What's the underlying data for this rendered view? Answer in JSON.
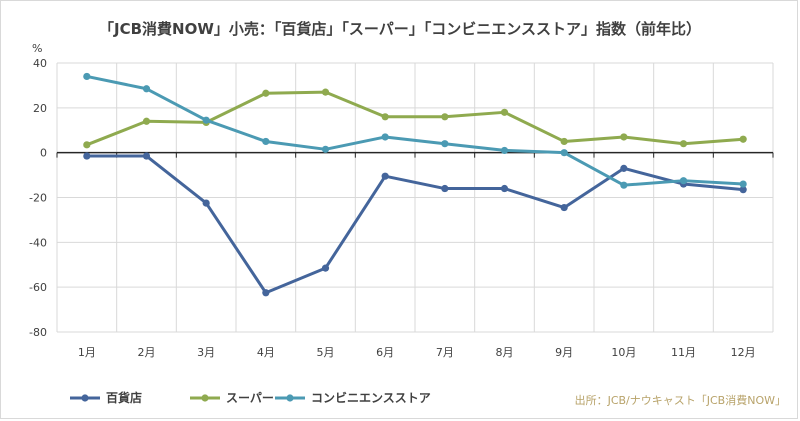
{
  "chart_data": {
    "type": "line",
    "title": "「JCB消費NOW」小売：「百貨店」「スーパー」「コンビニエンスストア」指数（前年比）",
    "y_unit": "%",
    "categories": [
      "1月",
      "2月",
      "3月",
      "4月",
      "5月",
      "6月",
      "7月",
      "8月",
      "9月",
      "10月",
      "11月",
      "12月"
    ],
    "ylim": [
      -80,
      40
    ],
    "yticks": [
      40,
      20,
      0,
      -20,
      -40,
      -60,
      -80
    ],
    "grid": true,
    "legend_position": "bottom-left",
    "series": [
      {
        "name": "百貨店",
        "color": "#44659b",
        "values": [
          -1.5,
          -1.5,
          -22.5,
          -62.5,
          -51.5,
          -10.5,
          -16,
          -16,
          -24.5,
          -7,
          -14,
          -16.5
        ]
      },
      {
        "name": "スーパー",
        "color": "#8faa4f",
        "values": [
          3.5,
          14,
          13.5,
          26.5,
          27,
          16,
          16,
          18,
          5,
          7,
          4,
          6
        ]
      },
      {
        "name": "コンビニエンスストア",
        "color": "#4b9ab3",
        "values": [
          34,
          28.5,
          14.5,
          5,
          1.5,
          7,
          4,
          1,
          0,
          -14.5,
          -12.5,
          -14
        ]
      }
    ],
    "source": "出所：JCB/ナウキャスト「JCB消費NOW」"
  }
}
